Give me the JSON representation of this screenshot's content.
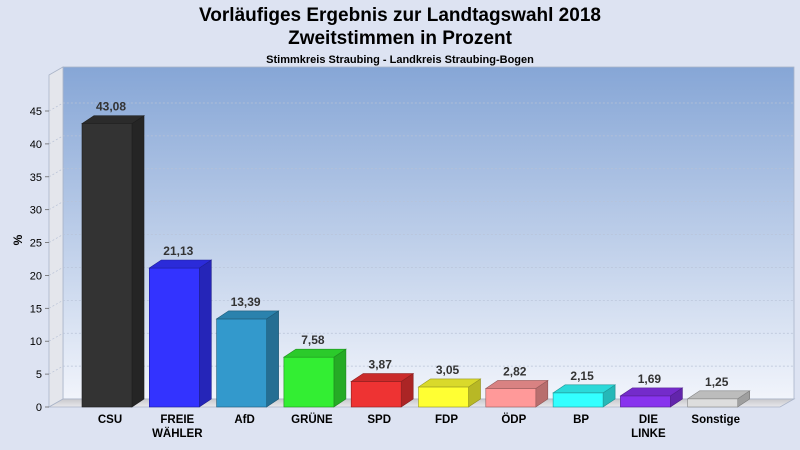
{
  "chart_data": {
    "type": "bar",
    "title_line1": "Vorläufiges Ergebnis zur Landtagswahl 2018",
    "title_line2": "Zweitstimmen in Prozent",
    "subtitle": "Stimmkreis Straubing - Landkreis Straubing-Bogen",
    "ylabel": "%",
    "ylim": [
      0,
      45
    ],
    "yticks": [
      "0",
      "5",
      "10",
      "15",
      "20",
      "25",
      "30",
      "35",
      "40",
      "45"
    ],
    "grid": true,
    "categories": [
      [
        "CSU"
      ],
      [
        "FREIE",
        "WÄHLER"
      ],
      [
        "AfD"
      ],
      [
        "GRÜNE"
      ],
      [
        "SPD"
      ],
      [
        "FDP"
      ],
      [
        "ÖDP"
      ],
      [
        "BP"
      ],
      [
        "DIE",
        "LINKE"
      ],
      [
        "Sonstige"
      ]
    ],
    "values": [
      43.08,
      21.13,
      13.39,
      7.58,
      3.87,
      3.05,
      2.82,
      2.15,
      1.69,
      1.25
    ],
    "value_labels": [
      "43,08",
      "21,13",
      "13,39",
      "7,58",
      "3,87",
      "3,05",
      "2,82",
      "2,15",
      "1,69",
      "1,25"
    ],
    "colors": [
      "#333333",
      "#3333ff",
      "#3399cc",
      "#33ee33",
      "#ee3333",
      "#ffff33",
      "#ff9999",
      "#33ffff",
      "#8833ee",
      "#dddddd"
    ]
  }
}
